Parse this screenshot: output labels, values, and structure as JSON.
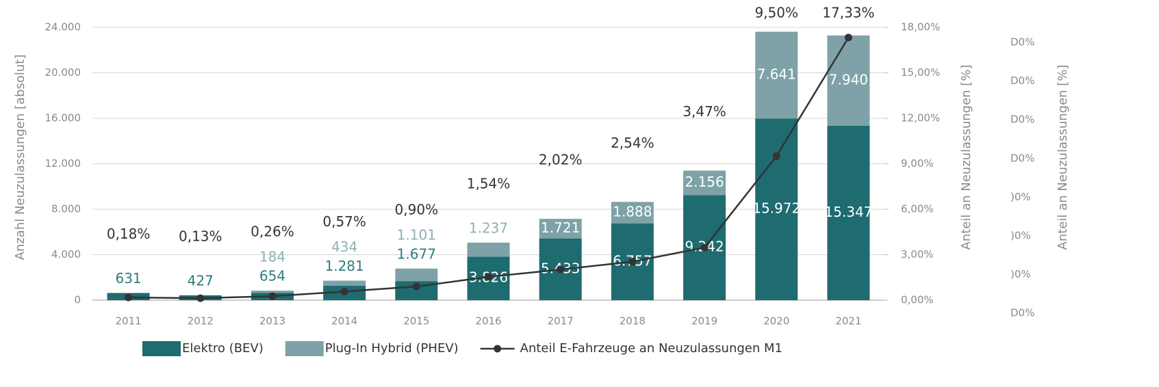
{
  "chart_data": {
    "type": "bar",
    "stacked": true,
    "y_label": "Anzahl Neuzulassungen [absolut]",
    "y2_label": "Anteil an Neuzulassungen [%]",
    "categories": [
      "2011",
      "2012",
      "2013",
      "2014",
      "2015",
      "2016",
      "2017",
      "2018",
      "2019",
      "2020",
      "2021"
    ],
    "series": [
      {
        "name": "Elektro (BEV)",
        "color": "#1e6b70",
        "values": [
          631,
          427,
          654,
          1281,
          1677,
          3826,
          5433,
          6757,
          9242,
          15972,
          15347
        ],
        "value_labels": [
          "631",
          "427",
          "654",
          "1.281",
          "1.677",
          "3.826",
          "5.433",
          "6.757",
          "9.242",
          "15.972",
          "15.347"
        ]
      },
      {
        "name": "Plug-In Hybrid (PHEV)",
        "color": "#7ea2a7",
        "values": [
          null,
          null,
          184,
          434,
          1101,
          1237,
          1721,
          1888,
          2156,
          7641,
          7940
        ],
        "value_labels": [
          null,
          null,
          "184",
          "434",
          "1.101",
          "1.237",
          "1.721",
          "1.888",
          "2.156",
          "7.641",
          "7.940"
        ]
      },
      {
        "name": "Anteil E-Fahrzeuge an Neuzulassungen M1",
        "color": "#333333",
        "type": "line",
        "axis": "y2",
        "values": [
          0.18,
          0.13,
          0.26,
          0.57,
          0.9,
          1.54,
          2.02,
          2.54,
          3.47,
          9.5,
          17.33
        ],
        "value_labels": [
          "0,18%",
          "0,13%",
          "0,26%",
          "0,57%",
          "0,90%",
          "1,54%",
          "2,02%",
          "2,54%",
          "3,47%",
          "9,50%",
          "17,33%"
        ]
      }
    ],
    "ylim": [
      0,
      24000
    ],
    "yticks": [
      {
        "value": 0,
        "label": "0"
      },
      {
        "value": 4000,
        "label": "4.000"
      },
      {
        "value": 8000,
        "label": "8.000"
      },
      {
        "value": 12000,
        "label": "12.000"
      },
      {
        "value": 16000,
        "label": "16.000"
      },
      {
        "value": 20000,
        "label": "20.000"
      },
      {
        "value": 24000,
        "label": "24.000"
      }
    ],
    "y2lim": [
      0,
      18
    ],
    "y2ticks": [
      {
        "value": 0,
        "label": "0,00%"
      },
      {
        "value": 3,
        "label": "3,00%"
      },
      {
        "value": 6,
        "label": "6,00%"
      },
      {
        "value": 9,
        "label": "9,00%"
      },
      {
        "value": 12,
        "label": "12,00%"
      },
      {
        "value": 15,
        "label": "15,00%"
      },
      {
        "value": 18,
        "label": "18,00%"
      }
    ],
    "grid": true,
    "legend": "bottom",
    "overlay_axis": {
      "title": "Anteil an Neuzulassungen [%]",
      "tick_labels": [
        "D0%",
        "D0%",
        "D0%",
        "D0%",
        ")0%",
        ")0%",
        ")0%",
        "D0%"
      ]
    }
  }
}
